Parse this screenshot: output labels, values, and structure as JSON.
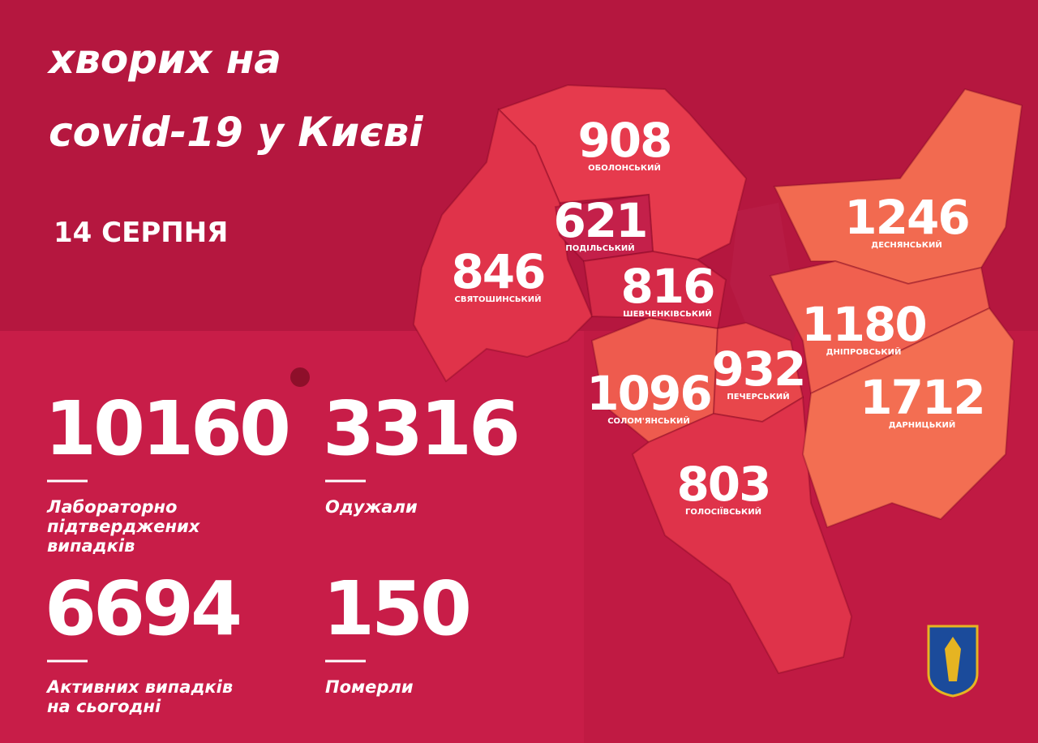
{
  "header": {
    "title": [
      "хворих на",
      "covid-19 у Києві"
    ],
    "date": "14 СЕРПНЯ"
  },
  "stats": [
    {
      "value": 10160,
      "label": [
        "Лабораторно",
        "підтверджених",
        "випадків"
      ]
    },
    {
      "value": 3316,
      "label": [
        "Одужали"
      ]
    },
    {
      "value": 6694,
      "label": [
        "Активних випадків",
        "на сьогодні"
      ]
    },
    {
      "value": 150,
      "label": [
        "Померли"
      ]
    }
  ],
  "districts": [
    {
      "name": "ОБОЛОНСЬКИЙ",
      "cases": 908
    },
    {
      "name": "ПОДІЛЬСЬКИЙ",
      "cases": 621
    },
    {
      "name": "СВЯТОШИНСЬКИЙ",
      "cases": 846
    },
    {
      "name": "ШЕВЧЕНКІВСЬКИЙ",
      "cases": 816
    },
    {
      "name": "СОЛОМ'ЯНСЬКИЙ",
      "cases": 1096
    },
    {
      "name": "ПЕЧЕРСЬКИЙ",
      "cases": 932
    },
    {
      "name": "ГОЛОСІЇВСЬКИЙ",
      "cases": 803
    },
    {
      "name": "ДЕСНЯНСЬКИЙ",
      "cases": 1246
    },
    {
      "name": "ДНІПРОВСЬКИЙ",
      "cases": 1180
    },
    {
      "name": "ДАРНИЦЬКИЙ",
      "cases": 1712
    }
  ]
}
